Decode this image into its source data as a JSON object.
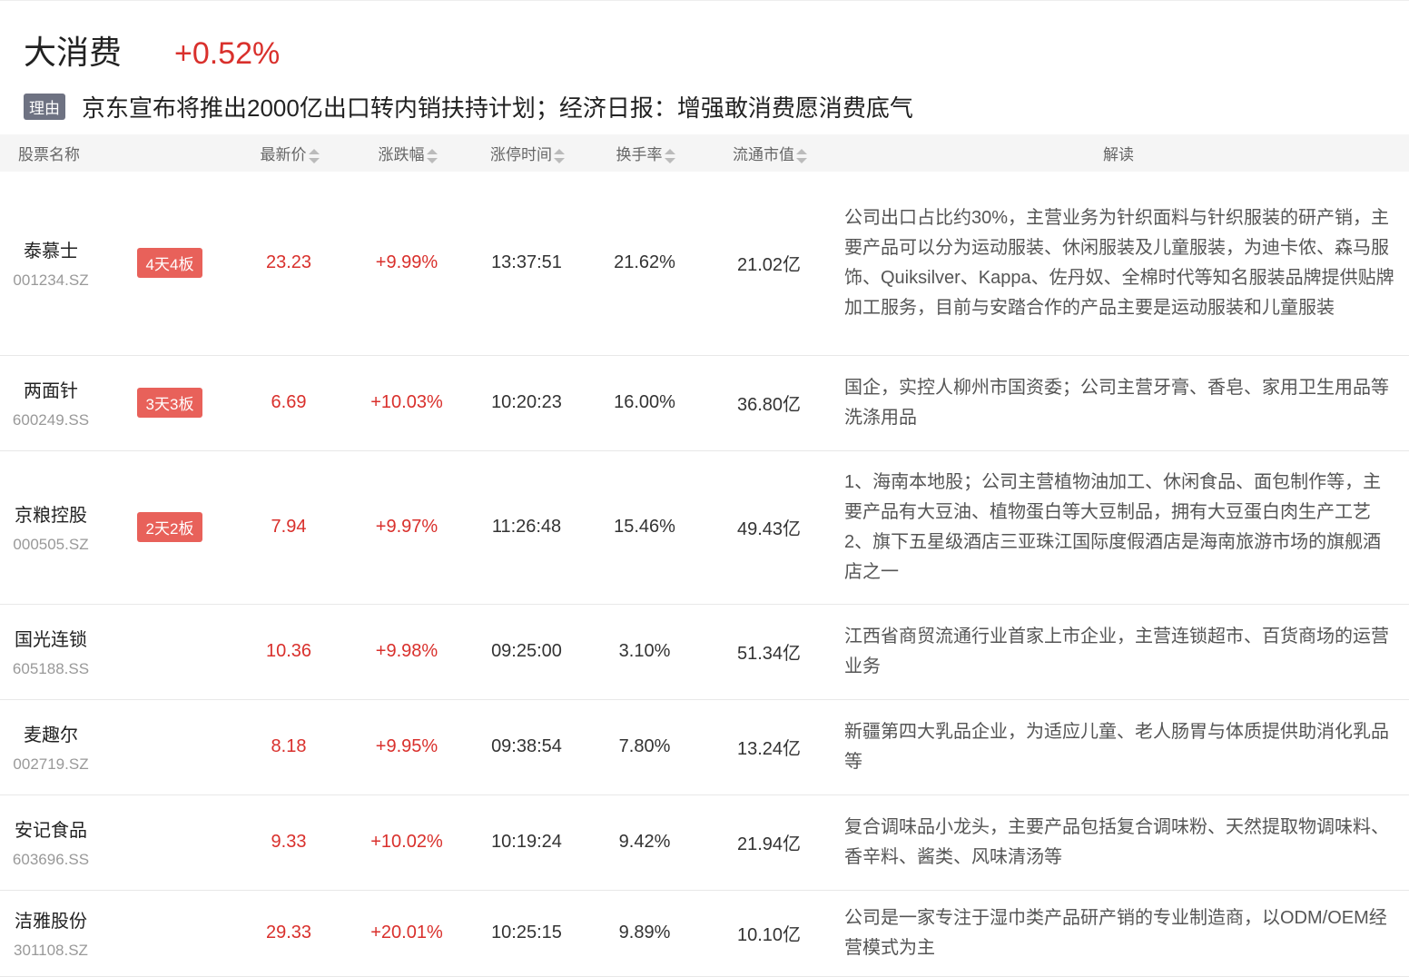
{
  "header": {
    "title": "大消费",
    "change": "+0.52%",
    "reason_tag": "理由",
    "reason": "京东宣布将推出2000亿出口转内销扶持计划；经济日报：增强敢消费愿消费底气"
  },
  "columns": {
    "name": "股票名称",
    "price": "最新价",
    "change": "涨跌幅",
    "limit_time": "涨停时间",
    "turnover": "换手率",
    "mcap": "流通市值",
    "desc": "解读"
  },
  "colors": {
    "up": "#d9302c",
    "badge": "#e8615a",
    "tag": "#6e7282"
  },
  "rows": [
    {
      "name": "泰慕士",
      "code": "001234.SZ",
      "badge": "4天4板",
      "price": "23.23",
      "change": "+9.99%",
      "time": "13:37:51",
      "turnover": "21.62%",
      "mcap": "21.02亿",
      "desc": "公司出口占比约30%，主营业务为针织面料与针织服装的研产销，主要产品可以分为运动服装、休闲服装及儿童服装，为迪卡侬、森马服饰、Quiksilver、Kappa、佐丹奴、全棉时代等知名服装品牌提供贴牌加工服务，目前与安踏合作的产品主要是运动服装和儿童服装"
    },
    {
      "name": "两面针",
      "code": "600249.SS",
      "badge": "3天3板",
      "price": "6.69",
      "change": "+10.03%",
      "time": "10:20:23",
      "turnover": "16.00%",
      "mcap": "36.80亿",
      "desc": "国企，实控人柳州市国资委；公司主营牙膏、香皂、家用卫生用品等洗涤用品"
    },
    {
      "name": "京粮控股",
      "code": "000505.SZ",
      "badge": "2天2板",
      "price": "7.94",
      "change": "+9.97%",
      "time": "11:26:48",
      "turnover": "15.46%",
      "mcap": "49.43亿",
      "desc": "1、海南本地股；公司主营植物油加工、休闲食品、面包制作等，主要产品有大豆油、植物蛋白等大豆制品，拥有大豆蛋白肉生产工艺 2、旗下五星级酒店三亚珠江国际度假酒店是海南旅游市场的旗舰酒店之一"
    },
    {
      "name": "国光连锁",
      "code": "605188.SS",
      "badge": "",
      "price": "10.36",
      "change": "+9.98%",
      "time": "09:25:00",
      "turnover": "3.10%",
      "mcap": "51.34亿",
      "desc": "江西省商贸流通行业首家上市企业，主营连锁超市、百货商场的运营业务"
    },
    {
      "name": "麦趣尔",
      "code": "002719.SZ",
      "badge": "",
      "price": "8.18",
      "change": "+9.95%",
      "time": "09:38:54",
      "turnover": "7.80%",
      "mcap": "13.24亿",
      "desc": "新疆第四大乳品企业，为适应儿童、老人肠胃与体质提供助消化乳品等"
    },
    {
      "name": "安记食品",
      "code": "603696.SS",
      "badge": "",
      "price": "9.33",
      "change": "+10.02%",
      "time": "10:19:24",
      "turnover": "9.42%",
      "mcap": "21.94亿",
      "desc": "复合调味品小龙头，主要产品包括复合调味粉、天然提取物调味料、香辛料、酱类、风味清汤等"
    },
    {
      "name": "洁雅股份",
      "code": "301108.SZ",
      "badge": "",
      "price": "29.33",
      "change": "+20.01%",
      "time": "10:25:15",
      "turnover": "9.89%",
      "mcap": "10.10亿",
      "desc": "公司是一家专注于湿巾类产品研产销的专业制造商，以ODM/OEM经营模式为主"
    }
  ]
}
